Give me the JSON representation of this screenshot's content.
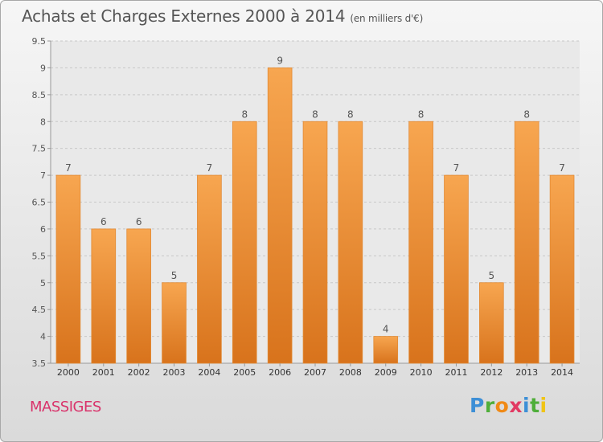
{
  "header": {
    "title": "Achats et Charges Externes 2000 à 2014",
    "subtitle": "(en milliers d'€)"
  },
  "footer": {
    "location": "MASSIGES",
    "brand": "Proxiti"
  },
  "colors": {
    "bar_light": "#f7a650",
    "bar_dark": "#d8731c",
    "grid": "#c8c8c8",
    "text": "#555555",
    "location": "#d9336b"
  },
  "chart_data": {
    "type": "bar",
    "categories": [
      "2000",
      "2001",
      "2002",
      "2003",
      "2004",
      "2005",
      "2006",
      "2007",
      "2008",
      "2009",
      "2010",
      "2011",
      "2012",
      "2013",
      "2014"
    ],
    "values": [
      7,
      6,
      6,
      5,
      7,
      8,
      9,
      8,
      8,
      4,
      8,
      7,
      5,
      8,
      7
    ],
    "data_labels": [
      "7",
      "6",
      "6",
      "5",
      "7",
      "8",
      "9",
      "8",
      "8",
      "4",
      "8",
      "7",
      "5",
      "8",
      "7"
    ],
    "title": "Achats et Charges Externes 2000 à 2014",
    "subtitle": "(en milliers d'€)",
    "xlabel": "",
    "ylabel": "",
    "ylim": [
      3.5,
      9.5
    ],
    "yticks": [
      3.5,
      4,
      4.5,
      5,
      5.5,
      6,
      6.5,
      7,
      7.5,
      8,
      8.5,
      9,
      9.5
    ],
    "ytick_labels": [
      "3.5",
      "4",
      "4.5",
      "5",
      "5.5",
      "6",
      "6.5",
      "7",
      "7.5",
      "8",
      "8.5",
      "9",
      "9.5"
    ],
    "grid": true,
    "legend": "none"
  }
}
